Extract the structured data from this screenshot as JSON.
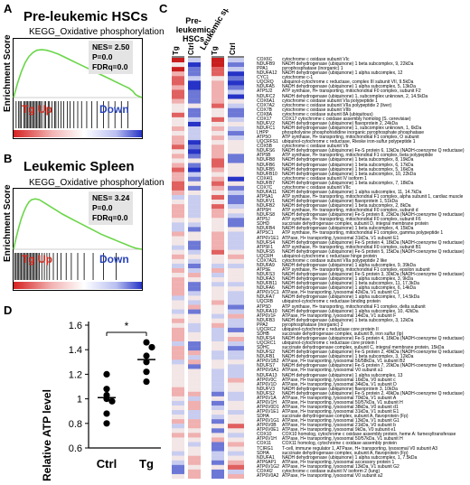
{
  "panels": {
    "A": {
      "letter": "A",
      "title": "Pre-leukemic HSCs",
      "subtitle": "KEGG_Oxidative phosphorylation",
      "stats": [
        "NES= 2.50",
        "P=0.0",
        "FDRq=0.0"
      ],
      "tg_label": "Tg Up",
      "down_label": "Down",
      "ylabel": "Enrichment Score"
    },
    "B": {
      "letter": "B",
      "title": "Leukemic Spleen",
      "subtitle": "KEGG_Oxidative phosphorylation",
      "stats": [
        "NES= 3.24",
        "P=0.0",
        "FDRq=0.0"
      ],
      "tg_label": "Tg Up",
      "down_label": "Down",
      "ylabel": "Enrichment Score"
    },
    "C": {
      "letter": "C",
      "group1": "Pre-leukemic HSCs",
      "group2": "Leukemic spleen",
      "col_labels": [
        "Tg",
        "Ctrl",
        "Tg",
        "Ctrl"
      ],
      "genes": [
        [
          "COX6C",
          "cytochrome c oxidase subunit VIc"
        ],
        [
          "NDUFB9",
          "NADH dehydrogenase (ubiquinone) 1 beta subcomplex, 9, 22kDa"
        ],
        [
          "PPA1",
          "pyrophosphatase (inorganic) 1"
        ],
        [
          "NDUFA12",
          "NADH dehydrogenase (ubiquinone) 1 alpha subcomplex, 12"
        ],
        [
          "CYC1",
          "cytochrome c-1"
        ],
        [
          "UQCRQ",
          "ubiquinol-cytochrome c reductase, complex III subunit VII, 9.5kDa"
        ],
        [
          "NDUFA5",
          "NADH dehydrogenase (ubiquinone) 1 alpha subcomplex, 5, 13kDa"
        ],
        [
          "ATP5J2",
          "ATP synthase, H+ transporting, mitochondrial F0 complex, subunit F2"
        ],
        [
          "NDUFC2",
          "NADH dehydrogenase (ubiquinone) 1, subcomplex unknown, 2, 14.5kDa"
        ],
        [
          "COX6A1",
          "cytochrome c oxidase subunit VIa polypeptide 1"
        ],
        [
          "COX7A2",
          "cytochrome c oxidase subunit VIIa polypeptide 2 (liver)"
        ],
        [
          "COX7B",
          "cytochrome c oxidase subunit VIIb"
        ],
        [
          "COX8A",
          "cytochrome c oxidase subunit 8A (ubiquitous)"
        ],
        [
          "COX17",
          "COX17 cytochrome c oxidase assembly homolog (S. cerevisiae)"
        ],
        [
          "NDUFV2",
          "NADH dehydrogenase (ubiquinone) flavoprotein 2, 24kDa"
        ],
        [
          "NDUFC1",
          "NADH dehydrogenase (ubiquinone) 1, subcomplex unknown, 1, 6kDa"
        ],
        [
          "LHPP",
          "phospholysine phosphohistidine inorganic pyrophosphate phosphatase"
        ],
        [
          "ATP5O",
          "ATP synthase, H+ transporting, mitochondrial F1 complex, O subunit"
        ],
        [
          "UQCRFS1",
          "ubiquinol-cytochrome c reductase, Rieske iron-sulfur polypeptide 1"
        ],
        [
          "COX5B",
          "cytochrome c oxidase subunit Vb"
        ],
        [
          "NDUFS6",
          "NADH dehydrogenase (ubiquinone) Fe-S protein 6, 13kDa (NADH-coenzyme Q reductase)"
        ],
        [
          "ATP5B",
          "ATP synthase, H+ transporting, mitochondrial F1 complex, beta polypeptide"
        ],
        [
          "NDUFB8",
          "NADH dehydrogenase (ubiquinone) 1 beta subcomplex, 8, 19kDa"
        ],
        [
          "NDUFB6",
          "NADH dehydrogenase (ubiquinone) 1 beta subcomplex, 6, 17kDa"
        ],
        [
          "NDUFB5",
          "NADH dehydrogenase (ubiquinone) 1 beta subcomplex, 5, 16kDa"
        ],
        [
          "NDUFB10",
          "NADH dehydrogenase (ubiquinone) 1 beta subcomplex, 10, 22kDa"
        ],
        [
          "COX4I1",
          "cytochrome c oxidase subunit IV isoform 1"
        ],
        [
          "NDUFB7",
          "NADH dehydrogenase (ubiquinone) 1 beta subcomplex, 7, 18kDa"
        ],
        [
          "COX7C",
          "cytochrome c oxidase subunit VIIc"
        ],
        [
          "NDUFA11",
          "NADH dehydrogenase (ubiquinone) 1 alpha subcomplex, 11, 14.7kDa"
        ],
        [
          "ATP5A1",
          "ATP synthase, H+ transporting, mitochondrial F1 complex, alpha subunit 1, cardiac muscle"
        ],
        [
          "NDUFV1",
          "NADH dehydrogenase (ubiquinone) flavoprotein 1, 51kDa"
        ],
        [
          "NDUFB2",
          "NADH dehydrogenase (ubiquinone) 1 beta subcomplex, 2, 8kDa"
        ],
        [
          "ATP5H",
          "ATP synthase, H+ transporting, mitochondrial F0 complex, subunit d"
        ],
        [
          "NDUFS8",
          "NADH dehydrogenase (ubiquinone) Fe-S protein 8, 23kDa (NADH-coenzyme Q reductase)"
        ],
        [
          "ATP5J",
          "ATP synthase, H+ transporting, mitochondrial F0 complex, subunit F6"
        ],
        [
          "SDHD",
          "succinate dehydrogenase complex, subunit D, integral membrane protein"
        ],
        [
          "NDUFB4",
          "NADH dehydrogenase (ubiquinone) 1 beta subcomplex, 4, 15kDa"
        ],
        [
          "ATP5C1",
          "ATP synthase, H+ transporting, mitochondrial F1 complex, gamma polypeptide 1"
        ],
        [
          "ATP6V1E1",
          "ATPase, H+ transporting, lysosomal 31kDa, V1 subunit E1"
        ],
        [
          "NDUFS4",
          "NADH dehydrogenase (ubiquinone) Fe-S protein 4, 18kDa (NADH-coenzyme Q reductase)"
        ],
        [
          "ATP5F1",
          "ATP synthase, H+ transporting, mitochondrial F0 complex, subunit B1"
        ],
        [
          "NDUFS5",
          "NADH dehydrogenase (ubiquinone) Fe-S protein 5, 15kDa (NADH-coenzyme Q reductase)"
        ],
        [
          "UQCRH",
          "ubiquinol-cytochrome c reductase hinge protein"
        ],
        [
          "COX7A2L",
          "cytochrome c oxidase subunit VIIa polypeptide 2 like"
        ],
        [
          "NDUFA9",
          "NADH dehydrogenase (ubiquinone) 1 alpha subcomplex, 9, 39kDa"
        ],
        [
          "ATP5E",
          "ATP synthase, H+ transporting, mitochondrial F1 complex, epsilon subunit"
        ],
        [
          "NDUFS3",
          "NADH dehydrogenase (ubiquinone) Fe-S protein 3, 30kDa (NADH-coenzyme Q reductase)"
        ],
        [
          "NDUFA3",
          "NADH dehydrogenase (ubiquinone) 1 alpha subcomplex, 3, 9kDa"
        ],
        [
          "NDUFB11",
          "NADH dehydrogenase (ubiquinone) 1 beta subcomplex, 11, 17.3kDa"
        ],
        [
          "NDUFA6",
          "NADH dehydrogenase (ubiquinone) 1 alpha subcomplex, 6, 14kDa"
        ],
        [
          "ATP6V1C1",
          "ATPase, H+ transporting, lysosomal 42kDa, V1 subunit C1"
        ],
        [
          "NDUFA7",
          "NADH dehydrogenase (ubiquinone) 1 alpha subcomplex, 7, 14.5kDa"
        ],
        [
          "UQCRB",
          "ubiquinol-cytochrome c reductase binding protein"
        ],
        [
          "ATP5D",
          "ATP synthase, H+ transporting, mitochondrial F1 complex, delta subunit"
        ],
        [
          "NDUFA10",
          "NADH dehydrogenase (ubiquinone) 1 alpha subcomplex, 10, 42kDa"
        ],
        [
          "ATP6V1F",
          "ATPase, H+ transporting, lysosomal 14kDa, V1 subunit F"
        ],
        [
          "NDUFB3",
          "NADH dehydrogenase (ubiquinone) 1 beta subcomplex, 3, 12kDa"
        ],
        [
          "PPA2",
          "pyrophosphatase (inorganic) 2"
        ],
        [
          "UQCRC2",
          "ubiquinol-cytochrome c reductase core protein II"
        ],
        [
          "SDHB",
          "succinate dehydrogenase complex, subunit B, iron sulfur (Ip)"
        ],
        [
          "NDUFS4",
          "NADH dehydrogenase (ubiquinone) Fe-S protein 4, 18kDa (NADH-coenzyme Q reductase)"
        ],
        [
          "UQCRC1",
          "ubiquinol-cytochrome c reductase core protein I"
        ],
        [
          "SDHC",
          "succinate dehydrogenase complex, subunit C, integral membrane protein, 15kDa"
        ],
        [
          "NDUFS2",
          "NADH dehydrogenase (ubiquinone) Fe-S protein 2, 49kDa (NADH-coenzyme Q reductase)"
        ],
        [
          "NDUFB1",
          "NADH dehydrogenase (ubiquinone) 1 beta subcomplex, 3, 12kDa"
        ],
        [
          "ATP6V1B2",
          "ATPase, H+ transporting, lysosomal 56/58kDa, V1 subunit B2"
        ],
        [
          "NDUFS7",
          "NADH dehydrogenase (ubiquinone) Fe-S protein 7, 20kDa (NADH-coenzyme Q reductase)"
        ],
        [
          "ATP6V0A1",
          "ATPase, H+ transporting, lysosomal V0 subunit a1"
        ],
        [
          "NDUFA13",
          "NADH dehydrogenase (ubiquinone) 1 alpha subcomplex, 13"
        ],
        [
          "ATP6V0C",
          "ATPase, H+ transporting, lysosomal 16kDa, V0 subunit c"
        ],
        [
          "ATP6V1D",
          "ATPase, H+ transporting, lysosomal 34kDa, V1 subunit D"
        ],
        [
          "NDUFV3",
          "NADH dehydrogenase (ubiquinone) flavoprotein 3, 10kDa"
        ],
        [
          "NDUFS2",
          "NADH dehydrogenase (ubiquinone) Fe-S protein 2, 49kDa (NADH-coenzyme Q reductase)"
        ],
        [
          "ATP6V1A",
          "ATPase, H+ transporting, lysosomal 70kDa, V1 subunit A"
        ],
        [
          "ATP6V1H",
          "ATPase, H+ transporting, lysosomal 50/57kDa, V1 subunit H"
        ],
        [
          "ATP6V0D1",
          "ATPase, H+ transporting, lysosomal 38kDa, V0 subunit d1"
        ],
        [
          "ATP6V1E1",
          "ATPase, H+ transporting, lysosomal 31kDa, V1 subunit E1"
        ],
        [
          "SDHA",
          "succinate dehydrogenase complex, subunit A, flavoprotein (Fp)"
        ],
        [
          "ATP6V1G1",
          "ATPase, H+ transporting, lysosomal 13kDa, V1 subunit G1"
        ],
        [
          "ATP6V0B",
          "ATPase, H+ transporting, lysosomal 21kDa, V0 subunit b"
        ],
        [
          "ATP6V0E1",
          "ATPase, H+ transporting, lysosomal 9kDa, V0 subunit e1"
        ],
        [
          "COX10",
          "COX10 homolog, cytochrome c oxidase assembly protein, heme A: farnesyltransferase"
        ],
        [
          "ATP6V1H",
          "ATPase, H+ transporting, lysosomal 50/57kDa, V1 subunit H"
        ],
        [
          "COX11",
          "COX11 homolog, cytochrome c oxidase assembly protein"
        ],
        [
          "TCIRG1",
          "T-cell, immune regulator 1, ATPase, H+ transporting, lysosomal V0 subunit A3"
        ],
        [
          "SDHA",
          "succinate dehydrogenase complex, subunit A, flavoprotein (Fp)"
        ],
        [
          "NDUFA1",
          "NADH dehydrogenase (ubiquinone) 1 alpha subcomplex, 1, 7.5kDa"
        ],
        [
          "ATP6AP1",
          "ATPase, H+ transporting, lysosomal accessory protein 1"
        ],
        [
          "ATP6V1G2",
          "ATPase, H+ transporting, lysosomal 13kDa, V1 subunit G2"
        ],
        [
          "COX4I2",
          "cytochrome c oxidase subunit IV isoform 2 (lung)"
        ],
        [
          "ATP6V0A2",
          "ATPase, H+ transporting, lysosomal V0 subunit a2"
        ]
      ]
    },
    "D": {
      "letter": "D",
      "significance": "*"
    }
  },
  "chart_data": [
    {
      "type": "line",
      "panel": "A",
      "title": "Pre-leukemic HSCs",
      "subtitle": "KEGG_Oxidative phosphorylation",
      "ylabel": "Enrichment Score",
      "series": [
        {
          "x": [
            0,
            0.03,
            0.06,
            0.09,
            0.12,
            0.15,
            0.18,
            0.22,
            0.26,
            0.3,
            0.35,
            0.4,
            0.45,
            0.5,
            0.55,
            0.6,
            0.65,
            0.7,
            0.75,
            0.8,
            0.85,
            0.9,
            0.93,
            0.95,
            0.97,
            1.0
          ],
          "values": [
            0,
            0.18,
            0.33,
            0.45,
            0.53,
            0.58,
            0.61,
            0.62,
            0.61,
            0.59,
            0.56,
            0.52,
            0.48,
            0.44,
            0.4,
            0.36,
            0.32,
            0.28,
            0.24,
            0.2,
            0.16,
            0.12,
            0.08,
            0.04,
            0.02,
            0
          ]
        }
      ],
      "hits": [
        0.02,
        0.04,
        0.05,
        0.06,
        0.08,
        0.09,
        0.1,
        0.11,
        0.12,
        0.13,
        0.14,
        0.15,
        0.16,
        0.17,
        0.18,
        0.19,
        0.2,
        0.21,
        0.22,
        0.24,
        0.25,
        0.27,
        0.28,
        0.3,
        0.32,
        0.33,
        0.35,
        0.37,
        0.39,
        0.42,
        0.44,
        0.47,
        0.5,
        0.53,
        0.57,
        0.61,
        0.65,
        0.7,
        0.74,
        0.79,
        0.84,
        0.89
      ]
    },
    {
      "type": "line",
      "panel": "B",
      "title": "Leukemic Spleen",
      "subtitle": "KEGG_Oxidative phosphorylation",
      "ylabel": "Enrichment Score",
      "series": [
        {
          "x": [
            0,
            0.02,
            0.04,
            0.06,
            0.08,
            0.1,
            0.12,
            0.14,
            0.17,
            0.2,
            0.24,
            0.28,
            0.33,
            0.38,
            0.44,
            0.5,
            0.56,
            0.62,
            0.68,
            0.74,
            0.8,
            0.86,
            0.92,
            0.96,
            1.0
          ],
          "values": [
            0,
            0.14,
            0.27,
            0.38,
            0.47,
            0.54,
            0.59,
            0.62,
            0.63,
            0.62,
            0.58,
            0.54,
            0.49,
            0.44,
            0.39,
            0.34,
            0.29,
            0.24,
            0.19,
            0.15,
            0.11,
            0.07,
            0.03,
            0.01,
            0
          ]
        }
      ],
      "hits": [
        0.01,
        0.02,
        0.03,
        0.04,
        0.05,
        0.06,
        0.07,
        0.08,
        0.09,
        0.1,
        0.11,
        0.12,
        0.13,
        0.14,
        0.15,
        0.16,
        0.17,
        0.18,
        0.19,
        0.2,
        0.22,
        0.24,
        0.26,
        0.28,
        0.31,
        0.34,
        0.37,
        0.41,
        0.45,
        0.5,
        0.55,
        0.62,
        0.7,
        0.8
      ]
    },
    {
      "type": "scatter",
      "panel": "D",
      "categories": [
        "Ctrl",
        "Tg"
      ],
      "ylabel": "Relative ATP level",
      "ylim": [
        0.6,
        1.6
      ],
      "yticks": [
        "0.6",
        "0.8",
        "1",
        "1.2",
        "1.4",
        "1.6"
      ],
      "series": [
        {
          "name": "Ctrl",
          "values": [
            1.2,
            1.08,
            1.03,
            1.0,
            0.98,
            0.88,
            0.8
          ],
          "mean": 1.01
        },
        {
          "name": "Tg",
          "values": [
            1.46,
            1.42,
            1.35,
            1.3,
            1.22,
            1.14
          ],
          "mean": 1.32
        }
      ]
    }
  ]
}
